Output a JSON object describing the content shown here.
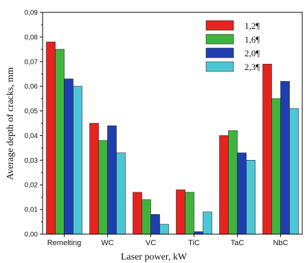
{
  "chart_data": {
    "type": "bar",
    "categories": [
      "Remelting",
      "WC",
      "VC",
      "TiC",
      "TaC",
      "NbC"
    ],
    "series": [
      {
        "name": "1,2¶",
        "color": "#e8221e",
        "values": [
          0.078,
          0.045,
          0.017,
          0.018,
          0.04,
          0.069
        ]
      },
      {
        "name": "1,6¶",
        "color": "#3fb43c",
        "values": [
          0.075,
          0.038,
          0.014,
          0.017,
          0.042,
          0.055
        ]
      },
      {
        "name": "2,0¶",
        "color": "#1f3fb0",
        "values": [
          0.063,
          0.044,
          0.008,
          0.001,
          0.033,
          0.062
        ]
      },
      {
        "name": "2,3¶",
        "color": "#4cc6d6",
        "values": [
          0.06,
          0.033,
          0.004,
          0.009,
          0.03,
          0.051
        ]
      }
    ],
    "yticks": [
      "0,00",
      "0,01",
      "0,02",
      "0,03",
      "0,04",
      "0,05",
      "0,06",
      "0,07",
      "0,08",
      "0,09"
    ],
    "xlabel": "Laser power, kW",
    "ylabel": "Average depth of cracks, mm",
    "ylim": [
      0,
      0.09
    ],
    "grid": false,
    "legend_position": "top-right"
  }
}
